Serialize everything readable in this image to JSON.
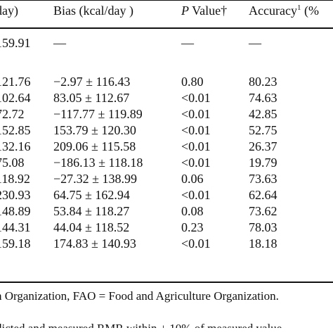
{
  "header": {
    "col1": "day)",
    "col2": "Bias (kcal/day )",
    "col3_italic": "P",
    "col3_rest": " Value†",
    "col4": "Accuracy",
    "col4_sup": "1",
    "col4_tail": " (%"
  },
  "rows": [
    {
      "c1": "159.91",
      "c2": "—",
      "c3": "—",
      "c4": "—"
    },
    {
      "c1": "121.76",
      "c2": "−2.97 ± 116.43",
      "c3": "0.80",
      "c4": "80.23"
    },
    {
      "c1": "102.64",
      "c2": "83.05 ± 112.67",
      "c3": "<0.01",
      "c4": "74.63"
    },
    {
      "c1": "72.72",
      "c2": "−117.77 ± 119.89",
      "c3": "<0.01",
      "c4": "42.85"
    },
    {
      "c1": "152.85",
      "c2": "153.79 ± 120.30",
      "c3": "<0.01",
      "c4": "52.75"
    },
    {
      "c1": "132.16",
      "c2": "209.06 ± 115.58",
      "c3": "<0.01",
      "c4": "26.37"
    },
    {
      "c1": "75.08",
      "c2": "−186.13 ± 118.18",
      "c3": "<0.01",
      "c4": "19.79"
    },
    {
      "c1": "118.92",
      "c2": "−27.32 ± 138.99",
      "c3": "0.06",
      "c4": "73.63"
    },
    {
      "c1": "230.93",
      "c2": "64.75 ± 162.94",
      "c3": "<0.01",
      "c4": "62.64"
    },
    {
      "c1": "148.89",
      "c2": "53.84 ± 118.27",
      "c3": "0.08",
      "c4": "73.62"
    },
    {
      "c1": "144.31",
      "c2": "44.04 ± 118.52",
      "c3": "0.23",
      "c4": "78.03"
    },
    {
      "c1": "159.18",
      "c2": "174.83 ± 140.93",
      "c3": "<0.01",
      "c4": "18.18"
    }
  ],
  "footnotes": {
    "line1": "h Organization, FAO = Food and Agriculture Organization.",
    "line2": "dicted and measured RMR within ± 10% of measured value"
  }
}
